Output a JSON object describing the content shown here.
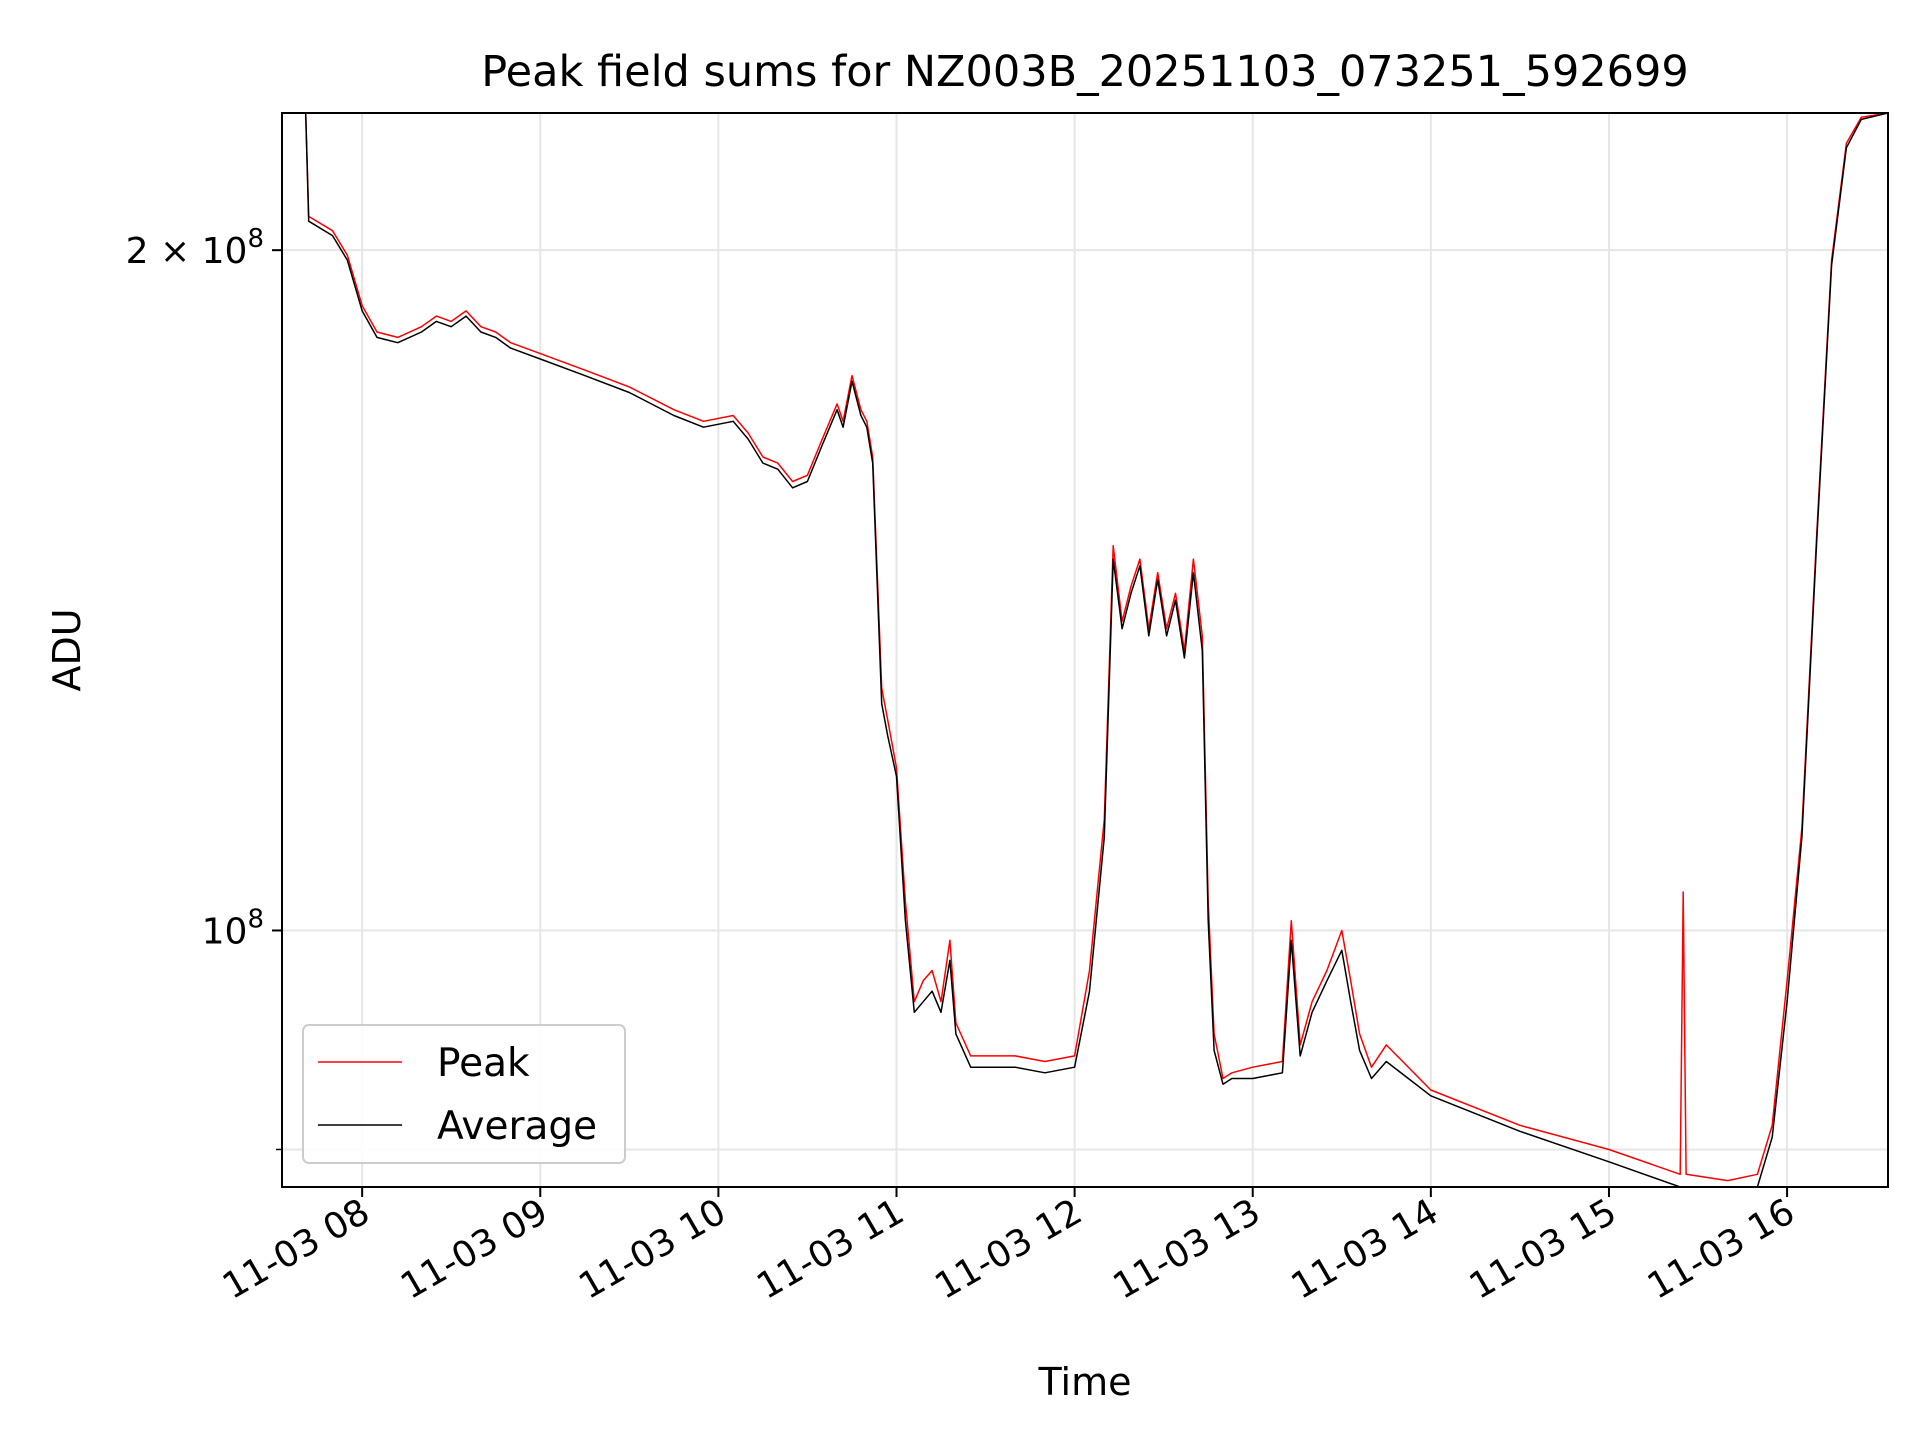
{
  "chart_data": {
    "type": "line",
    "title": "Peak field sums for NZ003B_20251103_073251_592699",
    "xlabel": "Time",
    "ylabel": "ADU",
    "y_scale": "log",
    "xlim": [
      "2025-11-03 07:33",
      "2025-11-03 16:34"
    ],
    "ylim": [
      77000000,
      230000000
    ],
    "grid": true,
    "legend_position": "lower-left",
    "x_ticks": [
      {
        "value": "2025-11-03 08:00",
        "label": "11-03 08"
      },
      {
        "value": "2025-11-03 09:00",
        "label": "11-03 09"
      },
      {
        "value": "2025-11-03 10:00",
        "label": "11-03 10"
      },
      {
        "value": "2025-11-03 11:00",
        "label": "11-03 11"
      },
      {
        "value": "2025-11-03 12:00",
        "label": "11-03 12"
      },
      {
        "value": "2025-11-03 13:00",
        "label": "11-03 13"
      },
      {
        "value": "2025-11-03 14:00",
        "label": "11-03 14"
      },
      {
        "value": "2025-11-03 15:00",
        "label": "11-03 15"
      },
      {
        "value": "2025-11-03 16:00",
        "label": "11-03 16"
      }
    ],
    "y_ticks": [
      {
        "value": 100000000,
        "label_base": "10",
        "label_exp": "8",
        "label_coef": ""
      },
      {
        "value": 200000000,
        "label_base": "10",
        "label_exp": "8",
        "label_coef": "2 × "
      }
    ],
    "y_minor_ticks": [
      80000000
    ],
    "series": [
      {
        "name": "Peak",
        "color": "#ff0000",
        "x": [
          "2025-11-03 07:33",
          "2025-11-03 07:41",
          "2025-11-03 07:42",
          "2025-11-03 07:50",
          "2025-11-03 07:55",
          "2025-11-03 08:00",
          "2025-11-03 08:05",
          "2025-11-03 08:12",
          "2025-11-03 08:20",
          "2025-11-03 08:25",
          "2025-11-03 08:30",
          "2025-11-03 08:35",
          "2025-11-03 08:40",
          "2025-11-03 08:45",
          "2025-11-03 08:50",
          "2025-11-03 09:00",
          "2025-11-03 09:15",
          "2025-11-03 09:30",
          "2025-11-03 09:45",
          "2025-11-03 09:55",
          "2025-11-03 10:05",
          "2025-11-03 10:10",
          "2025-11-03 10:15",
          "2025-11-03 10:20",
          "2025-11-03 10:25",
          "2025-11-03 10:30",
          "2025-11-03 10:35",
          "2025-11-03 10:40",
          "2025-11-03 10:42",
          "2025-11-03 10:45",
          "2025-11-03 10:48",
          "2025-11-03 10:50",
          "2025-11-03 10:52",
          "2025-11-03 10:55",
          "2025-11-03 10:57",
          "2025-11-03 11:00",
          "2025-11-03 11:03",
          "2025-11-03 11:06",
          "2025-11-03 11:09",
          "2025-11-03 11:12",
          "2025-11-03 11:15",
          "2025-11-03 11:18",
          "2025-11-03 11:20",
          "2025-11-03 11:25",
          "2025-11-03 11:35",
          "2025-11-03 11:40",
          "2025-11-03 11:50",
          "2025-11-03 12:00",
          "2025-11-03 12:05",
          "2025-11-03 12:10",
          "2025-11-03 12:13",
          "2025-11-03 12:16",
          "2025-11-03 12:19",
          "2025-11-03 12:22",
          "2025-11-03 12:25",
          "2025-11-03 12:28",
          "2025-11-03 12:31",
          "2025-11-03 12:34",
          "2025-11-03 12:37",
          "2025-11-03 12:40",
          "2025-11-03 12:43",
          "2025-11-03 12:45",
          "2025-11-03 12:47",
          "2025-11-03 12:50",
          "2025-11-03 12:53",
          "2025-11-03 13:00",
          "2025-11-03 13:10",
          "2025-11-03 13:13",
          "2025-11-03 13:16",
          "2025-11-03 13:20",
          "2025-11-03 13:25",
          "2025-11-03 13:30",
          "2025-11-03 13:33",
          "2025-11-03 13:36",
          "2025-11-03 13:40",
          "2025-11-03 13:45",
          "2025-11-03 14:00",
          "2025-11-03 14:30",
          "2025-11-03 15:00",
          "2025-11-03 15:24",
          "2025-11-03 15:25",
          "2025-11-03 15:26",
          "2025-11-03 15:40",
          "2025-11-03 15:50",
          "2025-11-03 15:55",
          "2025-11-03 16:00",
          "2025-11-03 16:05",
          "2025-11-03 16:10",
          "2025-11-03 16:15",
          "2025-11-03 16:20",
          "2025-11-03 16:25",
          "2025-11-03 16:34"
        ],
        "values": [
          230000000,
          230000000,
          207000000,
          204000000,
          199000000,
          189000000,
          184000000,
          183000000,
          185000000,
          187000000,
          186000000,
          188000000,
          185000000,
          184000000,
          182000000,
          180000000,
          177000000,
          174000000,
          170000000,
          168000000,
          169000000,
          166000000,
          162000000,
          161000000,
          158000000,
          159000000,
          165000000,
          171000000,
          168000000,
          176000000,
          170000000,
          168000000,
          162000000,
          128000000,
          124000000,
          118000000,
          103000000,
          93000000,
          95000000,
          96000000,
          93000000,
          99000000,
          91000000,
          88000000,
          88000000,
          88000000,
          87500000,
          88000000,
          96000000,
          112000000,
          148000000,
          137000000,
          142000000,
          146000000,
          136000000,
          144000000,
          136000000,
          141000000,
          133000000,
          146000000,
          135000000,
          103000000,
          90000000,
          86000000,
          86500000,
          87000000,
          87500000,
          101000000,
          89000000,
          93000000,
          96000000,
          100000000,
          95000000,
          90000000,
          87000000,
          89000000,
          85000000,
          82000000,
          80000000,
          78000000,
          104000000,
          78000000,
          77500000,
          78000000,
          82000000,
          95000000,
          111000000,
          150000000,
          198000000,
          223000000,
          229000000,
          230000000
        ]
      },
      {
        "name": "Average",
        "color": "#000000",
        "x": [
          "2025-11-03 07:33",
          "2025-11-03 07:41",
          "2025-11-03 07:42",
          "2025-11-03 07:50",
          "2025-11-03 07:55",
          "2025-11-03 08:00",
          "2025-11-03 08:05",
          "2025-11-03 08:12",
          "2025-11-03 08:20",
          "2025-11-03 08:25",
          "2025-11-03 08:30",
          "2025-11-03 08:35",
          "2025-11-03 08:40",
          "2025-11-03 08:45",
          "2025-11-03 08:50",
          "2025-11-03 09:00",
          "2025-11-03 09:15",
          "2025-11-03 09:30",
          "2025-11-03 09:45",
          "2025-11-03 09:55",
          "2025-11-03 10:05",
          "2025-11-03 10:10",
          "2025-11-03 10:15",
          "2025-11-03 10:20",
          "2025-11-03 10:25",
          "2025-11-03 10:30",
          "2025-11-03 10:35",
          "2025-11-03 10:40",
          "2025-11-03 10:42",
          "2025-11-03 10:45",
          "2025-11-03 10:48",
          "2025-11-03 10:50",
          "2025-11-03 10:52",
          "2025-11-03 10:55",
          "2025-11-03 10:57",
          "2025-11-03 11:00",
          "2025-11-03 11:03",
          "2025-11-03 11:06",
          "2025-11-03 11:09",
          "2025-11-03 11:12",
          "2025-11-03 11:15",
          "2025-11-03 11:18",
          "2025-11-03 11:20",
          "2025-11-03 11:25",
          "2025-11-03 11:35",
          "2025-11-03 11:40",
          "2025-11-03 11:50",
          "2025-11-03 12:00",
          "2025-11-03 12:05",
          "2025-11-03 12:10",
          "2025-11-03 12:13",
          "2025-11-03 12:16",
          "2025-11-03 12:19",
          "2025-11-03 12:22",
          "2025-11-03 12:25",
          "2025-11-03 12:28",
          "2025-11-03 12:31",
          "2025-11-03 12:34",
          "2025-11-03 12:37",
          "2025-11-03 12:40",
          "2025-11-03 12:43",
          "2025-11-03 12:45",
          "2025-11-03 12:47",
          "2025-11-03 12:50",
          "2025-11-03 12:53",
          "2025-11-03 13:00",
          "2025-11-03 13:10",
          "2025-11-03 13:13",
          "2025-11-03 13:16",
          "2025-11-03 13:20",
          "2025-11-03 13:25",
          "2025-11-03 13:30",
          "2025-11-03 13:33",
          "2025-11-03 13:36",
          "2025-11-03 13:40",
          "2025-11-03 13:45",
          "2025-11-03 14:00",
          "2025-11-03 14:30",
          "2025-11-03 15:00",
          "2025-11-03 15:24",
          "2025-11-03 15:25",
          "2025-11-03 15:26",
          "2025-11-03 15:40",
          "2025-11-03 15:50",
          "2025-11-03 15:55",
          "2025-11-03 16:00",
          "2025-11-03 16:05",
          "2025-11-03 16:10",
          "2025-11-03 16:15",
          "2025-11-03 16:20",
          "2025-11-03 16:25",
          "2025-11-03 16:34"
        ],
        "values": [
          230000000,
          230000000,
          206000000,
          203000000,
          198000000,
          188000000,
          183000000,
          182000000,
          184000000,
          186000000,
          185000000,
          187000000,
          184000000,
          183000000,
          181000000,
          179000000,
          176000000,
          173000000,
          169000000,
          167000000,
          168000000,
          165000000,
          161000000,
          160000000,
          157000000,
          158000000,
          164000000,
          170000000,
          167000000,
          175000000,
          169000000,
          167000000,
          161000000,
          126000000,
          122000000,
          117000000,
          101000000,
          92000000,
          93000000,
          94000000,
          92000000,
          97000000,
          90000000,
          87000000,
          87000000,
          87000000,
          86500000,
          87000000,
          94000000,
          110000000,
          146000000,
          136000000,
          141000000,
          145000000,
          135000000,
          143000000,
          135000000,
          140000000,
          132000000,
          144000000,
          133000000,
          101000000,
          88500000,
          85500000,
          86000000,
          86000000,
          86500000,
          99000000,
          88000000,
          92000000,
          95000000,
          98000000,
          93000000,
          88500000,
          86000000,
          87500000,
          84500000,
          81500000,
          79000000,
          77000000,
          77000000,
          77000000,
          76800000,
          77000000,
          81000000,
          93000000,
          110000000,
          149000000,
          197000000,
          222000000,
          228500000,
          230000000
        ]
      }
    ]
  }
}
